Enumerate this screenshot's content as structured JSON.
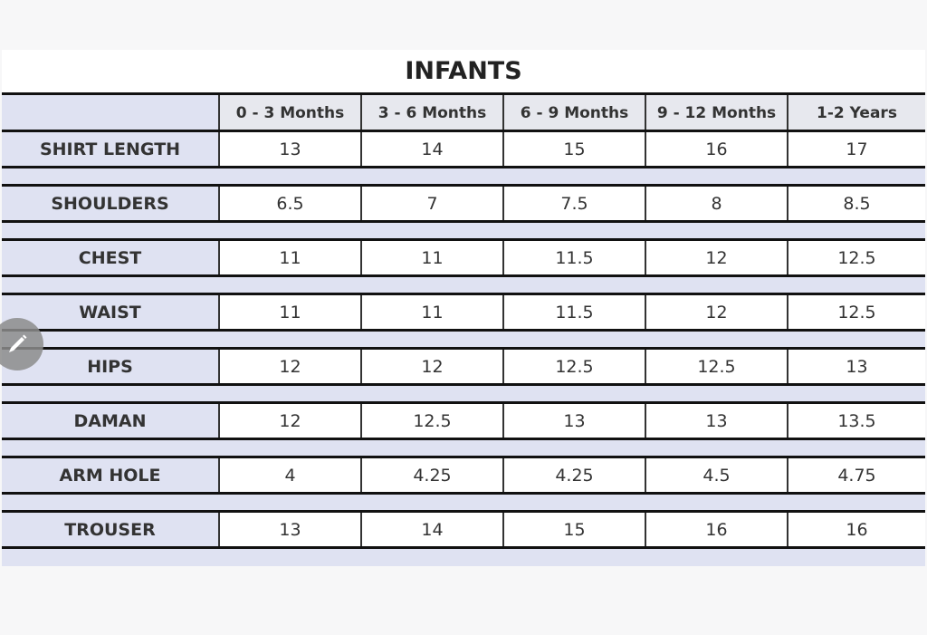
{
  "title": "INFANTS",
  "columns": [
    "0 - 3 Months",
    "3 - 6 Months",
    "6 - 9 Months",
    "9 - 12 Months",
    "1-2 Years"
  ],
  "rows": [
    {
      "label": "SHIRT LENGTH",
      "values": [
        "13",
        "14",
        "15",
        "16",
        "17"
      ]
    },
    {
      "label": "SHOULDERS",
      "values": [
        "6.5",
        "7",
        "7.5",
        "8",
        "8.5"
      ]
    },
    {
      "label": "CHEST",
      "values": [
        "11",
        "11",
        "11.5",
        "12",
        "12.5"
      ]
    },
    {
      "label": "WAIST",
      "values": [
        "11",
        "11",
        "11.5",
        "12",
        "12.5"
      ]
    },
    {
      "label": "HIPS",
      "values": [
        "12",
        "12",
        "12.5",
        "12.5",
        "13"
      ]
    },
    {
      "label": "DAMAN",
      "values": [
        "12",
        "12.5",
        "13",
        "13",
        "13.5"
      ]
    },
    {
      "label": "ARM HOLE",
      "values": [
        "4",
        "4.25",
        "4.25",
        "4.5",
        "4.75"
      ]
    },
    {
      "label": "TROUSER",
      "values": [
        "13",
        "14",
        "15",
        "16",
        "16"
      ]
    }
  ],
  "edit_button": {
    "icon": "pencil-icon"
  },
  "colors": {
    "label_bg": "#dfe2f2",
    "header_bg": "#e7e8ee",
    "border": "#111111"
  }
}
